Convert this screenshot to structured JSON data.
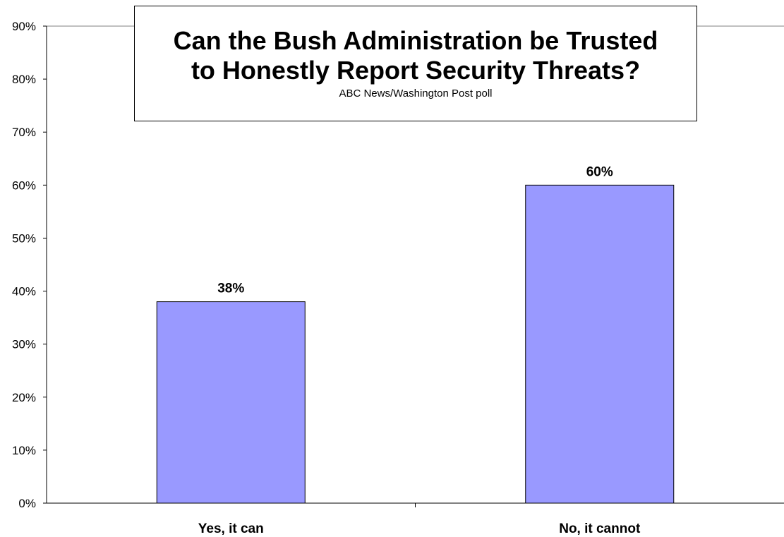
{
  "chart_data": {
    "type": "bar",
    "title": "Can the Bush Administration be Trusted\nto Honestly Report Security Threats?",
    "subtitle": "ABC News/Washington Post poll",
    "categories": [
      "Yes, it can",
      "No, it cannot"
    ],
    "values": [
      38,
      60
    ],
    "data_labels": [
      "38%",
      "60%"
    ],
    "ylim": [
      0,
      90
    ],
    "yticks": [
      "0%",
      "10%",
      "20%",
      "30%",
      "40%",
      "50%",
      "60%",
      "70%",
      "80%",
      "90%"
    ],
    "xlabel": "",
    "ylabel": "",
    "grid": false,
    "legend": "none",
    "bar_color": "#9999FF",
    "bar_border_color": "#000000"
  }
}
